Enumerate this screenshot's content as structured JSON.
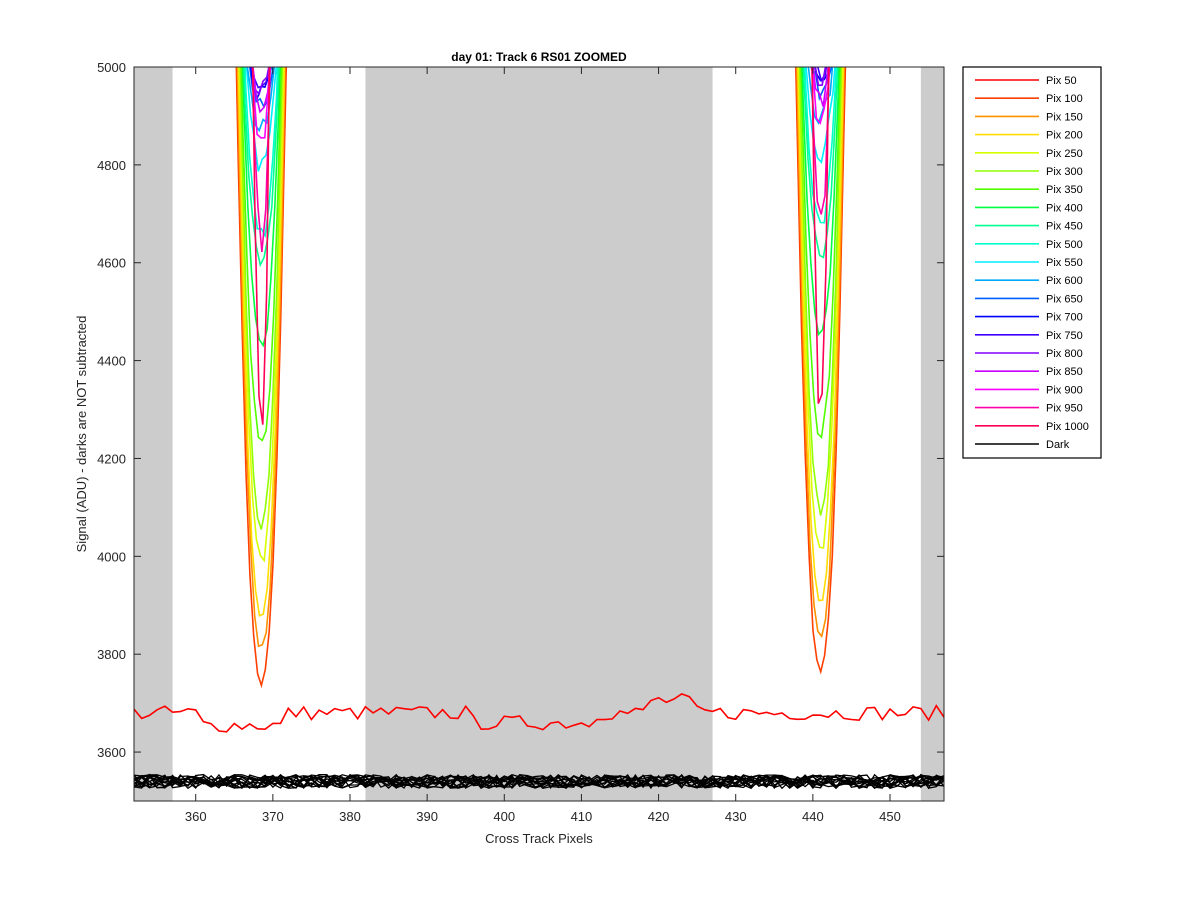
{
  "chart_data": {
    "type": "line",
    "title": "day 01: Track 6  RS01 ZOOMED",
    "xlabel": "Cross Track Pixels",
    "ylabel": "Signal (ADU) - darks are NOT subtracted",
    "xlim": [
      352,
      457
    ],
    "ylim": [
      3500,
      5000
    ],
    "xticks": [
      360,
      370,
      380,
      390,
      400,
      410,
      420,
      430,
      440,
      450
    ],
    "yticks": [
      3600,
      3800,
      4000,
      4200,
      4400,
      4600,
      4800,
      5000
    ],
    "grid": false,
    "legend_position": "outside-right",
    "shaded_regions": [
      [
        352,
        357
      ],
      [
        382,
        427
      ],
      [
        454,
        457
      ]
    ],
    "shade_color": "#cccccc",
    "dip_centers": [
      368.5,
      441
    ],
    "series": [
      {
        "name": "Pix 50",
        "color": "#ff0000",
        "minimum": 3680
      },
      {
        "name": "Pix 100",
        "color": "#ff4000",
        "minimum": 3740
      },
      {
        "name": "Pix 150",
        "color": "#ff9000",
        "minimum": 3810
      },
      {
        "name": "Pix 200",
        "color": "#ffdd00",
        "minimum": 3880
      },
      {
        "name": "Pix 250",
        "color": "#d8ff00",
        "minimum": 3990
      },
      {
        "name": "Pix 300",
        "color": "#90ff00",
        "minimum": 4070
      },
      {
        "name": "Pix 350",
        "color": "#50ff00",
        "minimum": 4230
      },
      {
        "name": "Pix 400",
        "color": "#00ff40",
        "minimum": 4430
      },
      {
        "name": "Pix 450",
        "color": "#00ff90",
        "minimum": 4590
      },
      {
        "name": "Pix 500",
        "color": "#00ffcc",
        "minimum": 4660
      },
      {
        "name": "Pix 550",
        "color": "#00eeff",
        "minimum": 4800
      },
      {
        "name": "Pix 600",
        "color": "#00aaff",
        "minimum": 4870
      },
      {
        "name": "Pix 650",
        "color": "#0060ff",
        "minimum": 4930
      },
      {
        "name": "Pix 700",
        "color": "#0000ff",
        "minimum": 4940
      },
      {
        "name": "Pix 750",
        "color": "#4000ff",
        "minimum": 4950
      },
      {
        "name": "Pix 800",
        "color": "#8000ff",
        "minimum": 4950
      },
      {
        "name": "Pix 850",
        "color": "#cc00ff",
        "minimum": 4900
      },
      {
        "name": "Pix 900",
        "color": "#ff00ff",
        "minimum": 4850
      },
      {
        "name": "Pix 950",
        "color": "#ff00aa",
        "minimum": 4650
      },
      {
        "name": "Pix 1000",
        "color": "#ff0055",
        "minimum": 4270
      },
      {
        "name": "Dark",
        "color": "#000000",
        "level": 3540
      }
    ],
    "pix50_baseline": 3680
  }
}
